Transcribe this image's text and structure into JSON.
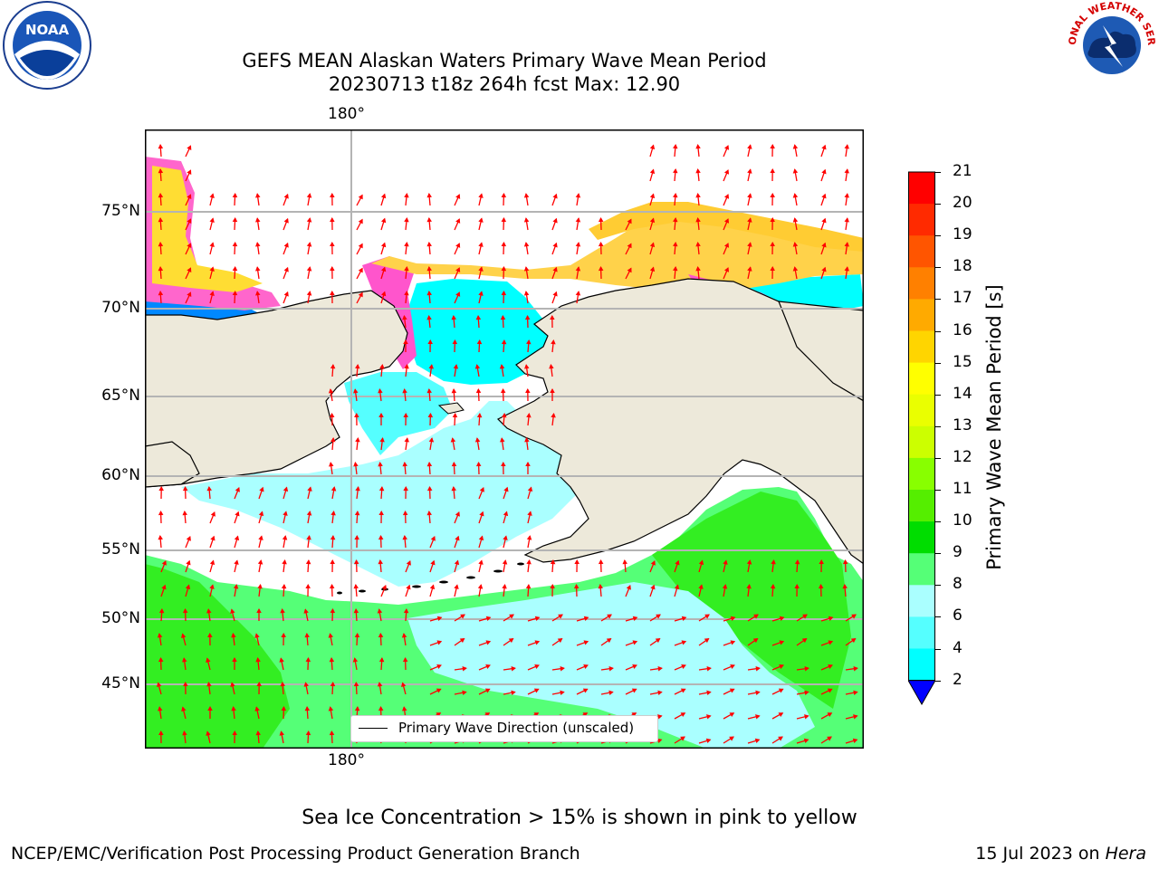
{
  "title": {
    "line1": "GEFS MEAN Alaskan Waters Primary Wave Mean Period",
    "line2": "20230713 t18z 264h fcst   Max: 12.90"
  },
  "logos": {
    "left": "noaa-logo",
    "right": "national-weather-service-logo",
    "left_text": "NOAA",
    "right_text": "NATIONAL WEATHER SERVICE"
  },
  "map": {
    "top_lon_label": "180°",
    "bottom_lon_label": "180°",
    "lat_labels": [
      "75°N",
      "70°N",
      "65°N",
      "60°N",
      "55°N",
      "50°N",
      "45°N"
    ],
    "legend_text": "Primary Wave Direction (unscaled)",
    "colors": {
      "land": "#ede9da",
      "coast": "#000000",
      "grid": "#b4b4b4",
      "arrow": "#ff0000"
    }
  },
  "colorbar": {
    "title": "Primary Wave Mean Period [s]",
    "ticks": [
      "21",
      "20",
      "19",
      "18",
      "17",
      "16",
      "15",
      "14",
      "13",
      "12",
      "11",
      "10",
      "9",
      "8",
      "6",
      "4",
      "2"
    ],
    "colors": [
      "#ff0000",
      "#ff2a00",
      "#ff5500",
      "#ff8000",
      "#ffaa00",
      "#ffd500",
      "#ffff00",
      "#eaff00",
      "#ccff00",
      "#88ff00",
      "#55ee00",
      "#00dd00",
      "#55ff77",
      "#aaffff",
      "#55ffff",
      "#00ffff",
      "#0088ff",
      "#0000ff"
    ]
  },
  "footer": {
    "ice_note": "Sea Ice Concentration > 15% is shown in pink to yellow",
    "credit": "NCEP/EMC/Verification Post Processing Product Generation Branch",
    "date_prefix": "15 Jul 2023 on ",
    "date_machine": "Hera"
  }
}
